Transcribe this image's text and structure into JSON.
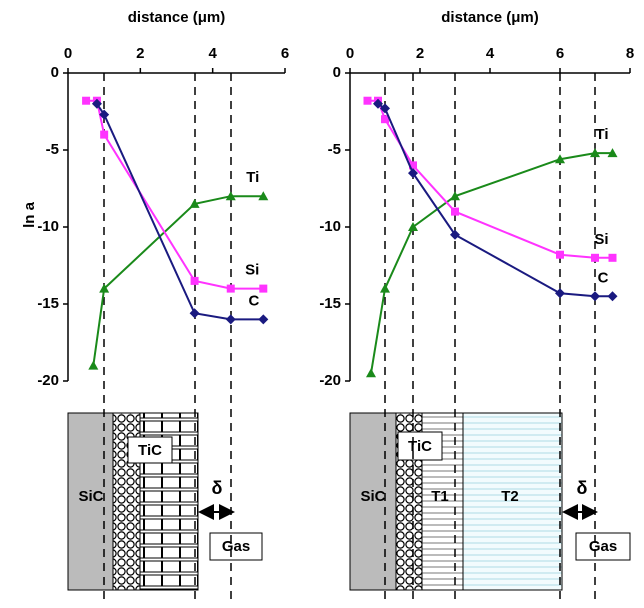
{
  "chart_data": [
    {
      "type": "line",
      "title": "distance (μm)",
      "y_label": "ln a",
      "xlim": [
        0,
        6
      ],
      "xticks": [
        0,
        2,
        4,
        6
      ],
      "ylim": [
        -20,
        0
      ],
      "yticks": [
        0,
        -5,
        -10,
        -15,
        -20
      ],
      "series": [
        {
          "name": "Ti",
          "color": "#1a8a1a",
          "marker": "triangle",
          "x": [
            0.7,
            1.0,
            3.5,
            4.5,
            5.4
          ],
          "values": [
            -19,
            -14,
            -8.5,
            -8,
            -8
          ]
        },
        {
          "name": "Si",
          "color": "#ff33ff",
          "marker": "square",
          "x": [
            0.5,
            0.8,
            1.0,
            3.5,
            4.5,
            5.4
          ],
          "values": [
            -1.8,
            -1.8,
            -4,
            -13.5,
            -14,
            -14
          ]
        },
        {
          "name": "C",
          "color": "#1a1a80",
          "marker": "diamond",
          "x": [
            0.8,
            1.0,
            3.5,
            4.5,
            5.4
          ],
          "values": [
            -2,
            -2.7,
            -15.6,
            -16,
            -16
          ]
        }
      ]
    },
    {
      "type": "line",
      "title": "distance (μm)",
      "xlim": [
        0,
        8
      ],
      "xticks": [
        0,
        2,
        4,
        6,
        8
      ],
      "ylim": [
        -20,
        0
      ],
      "yticks": [
        0,
        -5,
        -10,
        -15,
        -20
      ],
      "series": [
        {
          "name": "Ti",
          "color": "#1a8a1a",
          "marker": "triangle",
          "x": [
            0.6,
            1.0,
            1.8,
            3,
            6,
            7,
            7.5
          ],
          "values": [
            -19.5,
            -14,
            -10,
            -8,
            -5.6,
            -5.2,
            -5.2
          ]
        },
        {
          "name": "Si",
          "color": "#ff33ff",
          "marker": "square",
          "x": [
            0.5,
            0.8,
            1.0,
            1.8,
            3,
            6,
            7,
            7.5
          ],
          "values": [
            -1.8,
            -1.8,
            -3,
            -6,
            -9,
            -11.8,
            -12,
            -12
          ]
        },
        {
          "name": "C",
          "color": "#1a1a80",
          "marker": "diamond",
          "x": [
            0.8,
            1.0,
            1.8,
            3,
            6,
            7,
            7.5
          ],
          "values": [
            -2,
            -2.3,
            -6.5,
            -10.5,
            -14.3,
            -14.5,
            -14.5
          ]
        }
      ]
    }
  ],
  "diagrams": [
    {
      "substrate": "SiC",
      "layer": "TiC",
      "delta": "δ",
      "gas": "Gas"
    },
    {
      "substrate": "SiC",
      "layer": "TiC",
      "t1": "T1",
      "t2": "T2",
      "delta": "δ",
      "gas": "Gas"
    }
  ]
}
